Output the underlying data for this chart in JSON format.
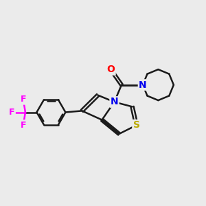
{
  "background_color": "#ebebeb",
  "bond_color": "#1a1a1a",
  "bond_width": 1.8,
  "atom_colors": {
    "N": "#0000ee",
    "O": "#ff0000",
    "S": "#bbaa00",
    "F": "#ff00ff",
    "C": "#1a1a1a"
  }
}
